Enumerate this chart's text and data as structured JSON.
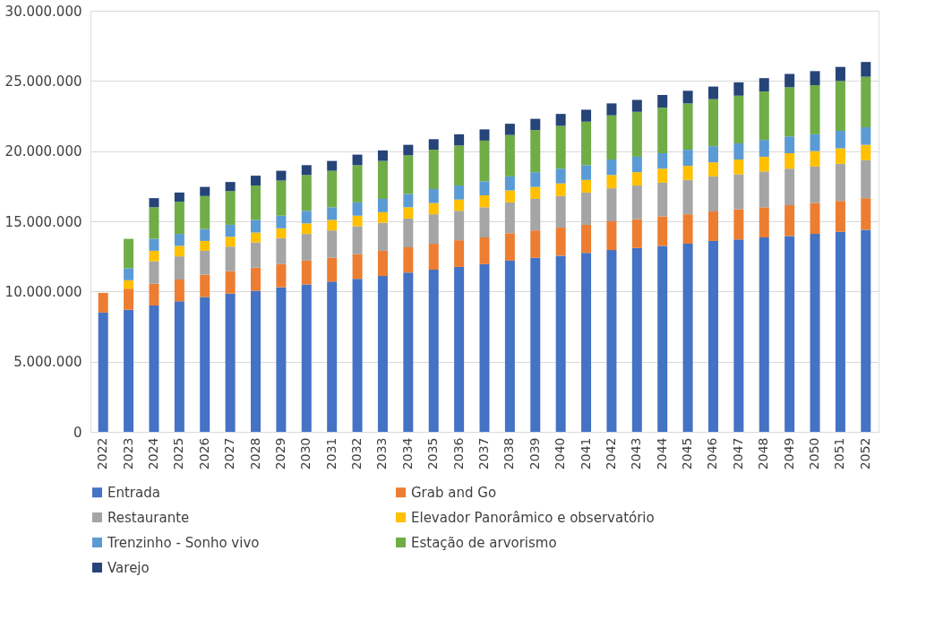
{
  "chart_data": {
    "type": "bar",
    "stacked": true,
    "legend": "bottom",
    "grid": "y",
    "categories": [
      "2022",
      "2023",
      "2024",
      "2025",
      "2026",
      "2027",
      "2028",
      "2029",
      "2030",
      "2031",
      "2032",
      "2033",
      "2034",
      "2035",
      "2036",
      "2037",
      "2038",
      "2039",
      "2040",
      "2041",
      "2042",
      "2043",
      "2044",
      "2045",
      "2046",
      "2047",
      "2048",
      "2049",
      "2050",
      "2051",
      "2052"
    ],
    "ylim": [
      0,
      30000000
    ],
    "yticks": [
      {
        "value": 0,
        "label": "0"
      },
      {
        "value": 5000000,
        "label": "5.000.000"
      },
      {
        "value": 10000000,
        "label": "10.000.000"
      },
      {
        "value": 15000000,
        "label": "15.000.000"
      },
      {
        "value": 20000000,
        "label": "20.000.000"
      },
      {
        "value": 25000000,
        "label": "25.000.000"
      },
      {
        "value": 30000000,
        "label": "30.000.000"
      }
    ],
    "series": [
      {
        "name": "Entrada",
        "color": "#4472c4",
        "values": [
          8500000,
          8700000,
          9000000,
          9300000,
          9600000,
          9850000,
          10050000,
          10300000,
          10500000,
          10700000,
          10900000,
          11100000,
          11350000,
          11550000,
          11750000,
          11950000,
          12200000,
          12400000,
          12550000,
          12750000,
          12950000,
          13100000,
          13250000,
          13400000,
          13600000,
          13700000,
          13850000,
          13950000,
          14100000,
          14250000,
          14400000
        ]
      },
      {
        "name": "Grab and Go",
        "color": "#ed7d31",
        "values": [
          1400000,
          1500000,
          1550000,
          1550000,
          1600000,
          1600000,
          1650000,
          1650000,
          1700000,
          1700000,
          1750000,
          1800000,
          1800000,
          1850000,
          1900000,
          1900000,
          1950000,
          1950000,
          2000000,
          2000000,
          2050000,
          2050000,
          2100000,
          2100000,
          2100000,
          2150000,
          2150000,
          2200000,
          2200000,
          2200000,
          2250000
        ]
      },
      {
        "name": "Restaurante",
        "color": "#a5a5a5",
        "values": [
          0,
          0,
          1600000,
          1650000,
          1700000,
          1750000,
          1800000,
          1850000,
          1900000,
          1950000,
          2000000,
          2000000,
          2050000,
          2100000,
          2100000,
          2150000,
          2200000,
          2250000,
          2250000,
          2300000,
          2350000,
          2400000,
          2400000,
          2450000,
          2500000,
          2500000,
          2550000,
          2600000,
          2600000,
          2650000,
          2700000
        ]
      },
      {
        "name": "Elevador Panorâmico e observatório",
        "color": "#ffc000",
        "values": [
          0,
          600000,
          750000,
          750000,
          700000,
          700000,
          700000,
          700000,
          750000,
          750000,
          750000,
          750000,
          800000,
          800000,
          800000,
          850000,
          850000,
          850000,
          900000,
          900000,
          950000,
          950000,
          1000000,
          1000000,
          1000000,
          1050000,
          1050000,
          1100000,
          1100000,
          1100000,
          1100000
        ]
      },
      {
        "name": "Trenzinho - Sonho vivo",
        "color": "#5b9bd5",
        "values": [
          0,
          850000,
          850000,
          850000,
          850000,
          850000,
          900000,
          900000,
          900000,
          900000,
          950000,
          950000,
          950000,
          1000000,
          1000000,
          1000000,
          1000000,
          1050000,
          1050000,
          1050000,
          1100000,
          1100000,
          1100000,
          1150000,
          1150000,
          1150000,
          1200000,
          1200000,
          1200000,
          1250000,
          1250000
        ]
      },
      {
        "name": "Estação de arvorismo",
        "color": "#70ad47",
        "values": [
          0,
          2100000,
          2250000,
          2300000,
          2350000,
          2400000,
          2450000,
          2500000,
          2550000,
          2600000,
          2650000,
          2700000,
          2750000,
          2800000,
          2850000,
          2900000,
          2950000,
          3000000,
          3050000,
          3100000,
          3150000,
          3200000,
          3250000,
          3300000,
          3350000,
          3400000,
          3450000,
          3500000,
          3500000,
          3550000,
          3600000
        ]
      },
      {
        "name": "Varejo",
        "color": "#264478",
        "values": [
          0,
          0,
          650000,
          650000,
          650000,
          650000,
          700000,
          700000,
          700000,
          700000,
          750000,
          750000,
          750000,
          750000,
          800000,
          800000,
          800000,
          800000,
          850000,
          850000,
          850000,
          850000,
          900000,
          900000,
          900000,
          950000,
          950000,
          950000,
          1000000,
          1000000,
          1050000
        ]
      }
    ]
  }
}
